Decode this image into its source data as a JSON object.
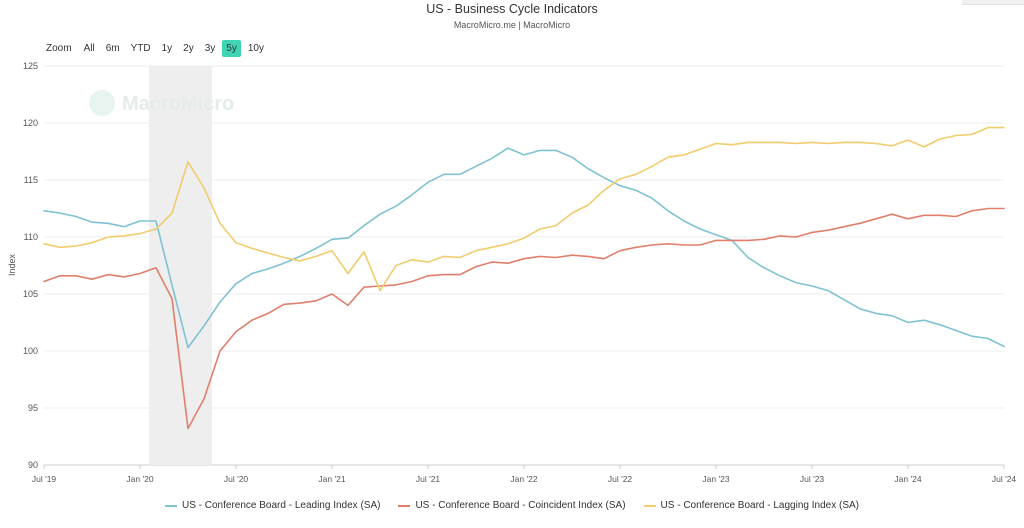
{
  "header": {
    "title": "US - Business Cycle Indicators",
    "subtitle": "MacroMicro.me | MacroMicro"
  },
  "range_selector": {
    "label": "Zoom",
    "buttons": [
      "All",
      "6m",
      "YTD",
      "1y",
      "2y",
      "3y",
      "5y",
      "10y"
    ],
    "active": "5y"
  },
  "watermark": "MacroMicro",
  "chart_data": {
    "type": "line",
    "title": "US - Business Cycle Indicators",
    "subtitle": "MacroMicro.me | MacroMicro",
    "ylabel": "Index",
    "xlabel": "",
    "ylim": [
      90,
      125
    ],
    "yticks": [
      90,
      95,
      100,
      105,
      110,
      115,
      120,
      125
    ],
    "xlim": [
      "2019-07",
      "2024-07"
    ],
    "xticks": [
      {
        "date": "2019-07",
        "label": "Jul '19"
      },
      {
        "date": "2020-01",
        "label": "Jan '20"
      },
      {
        "date": "2020-07",
        "label": "Jul '20"
      },
      {
        "date": "2021-01",
        "label": "Jan '21"
      },
      {
        "date": "2021-07",
        "label": "Jul '21"
      },
      {
        "date": "2022-01",
        "label": "Jan '22"
      },
      {
        "date": "2022-07",
        "label": "Jul '22"
      },
      {
        "date": "2023-01",
        "label": "Jan '23"
      },
      {
        "date": "2023-07",
        "label": "Jul '23"
      },
      {
        "date": "2024-01",
        "label": "Jan '24"
      },
      {
        "date": "2024-07",
        "label": "Jul '24"
      }
    ],
    "grid": true,
    "legend": "bottom",
    "recession_band": {
      "start": "2020-02",
      "end": "2020-05"
    },
    "x": [
      "2019-07",
      "2019-08",
      "2019-09",
      "2019-10",
      "2019-11",
      "2019-12",
      "2020-01",
      "2020-02",
      "2020-03",
      "2020-04",
      "2020-05",
      "2020-06",
      "2020-07",
      "2020-08",
      "2020-09",
      "2020-10",
      "2020-11",
      "2020-12",
      "2021-01",
      "2021-02",
      "2021-03",
      "2021-04",
      "2021-05",
      "2021-06",
      "2021-07",
      "2021-08",
      "2021-09",
      "2021-10",
      "2021-11",
      "2021-12",
      "2022-01",
      "2022-02",
      "2022-03",
      "2022-04",
      "2022-05",
      "2022-06",
      "2022-07",
      "2022-08",
      "2022-09",
      "2022-10",
      "2022-11",
      "2022-12",
      "2023-01",
      "2023-02",
      "2023-03",
      "2023-04",
      "2023-05",
      "2023-06",
      "2023-07",
      "2023-08",
      "2023-09",
      "2023-10",
      "2023-11",
      "2023-12",
      "2024-01",
      "2024-02",
      "2024-03",
      "2024-04",
      "2024-05",
      "2024-06",
      "2024-07"
    ],
    "series": [
      {
        "name": "US - Conference Board - Leading Index (SA)",
        "color": "#7ec2d3",
        "values": [
          112.3,
          112.1,
          111.8,
          111.3,
          111.2,
          110.9,
          111.4,
          111.4,
          105.8,
          100.3,
          102.2,
          104.3,
          105.9,
          106.8,
          107.2,
          107.7,
          108.3,
          109.0,
          109.8,
          109.9,
          111.0,
          112.0,
          112.7,
          113.7,
          114.8,
          115.5,
          115.5,
          116.2,
          116.9,
          117.8,
          117.2,
          117.6,
          117.6,
          117.0,
          116.0,
          115.2,
          114.5,
          114.1,
          113.4,
          112.3,
          111.4,
          110.7,
          110.2,
          109.7,
          108.2,
          107.3,
          106.6,
          106.0,
          105.7,
          105.3,
          104.5,
          103.7,
          103.3,
          103.1,
          102.5,
          102.7,
          102.3,
          101.8,
          101.3,
          101.1,
          100.4
        ]
      },
      {
        "name": "US - Conference Board - Coincident Index (SA)",
        "color": "#e07f6c",
        "values": [
          106.1,
          106.6,
          106.6,
          106.3,
          106.7,
          106.5,
          106.8,
          107.3,
          104.6,
          93.2,
          95.8,
          100.0,
          101.7,
          102.7,
          103.3,
          104.1,
          104.2,
          104.4,
          105.0,
          104.0,
          105.6,
          105.7,
          105.8,
          106.1,
          106.6,
          106.7,
          106.7,
          107.4,
          107.8,
          107.7,
          108.1,
          108.3,
          108.2,
          108.4,
          108.3,
          108.1,
          108.8,
          109.1,
          109.3,
          109.4,
          109.3,
          109.3,
          109.7,
          109.7,
          109.7,
          109.8,
          110.1,
          110.0,
          110.4,
          110.6,
          110.9,
          111.2,
          111.6,
          112.0,
          111.6,
          111.9,
          111.9,
          111.8,
          112.3,
          112.5,
          112.5
        ]
      },
      {
        "name": "US - Conference Board - Lagging Index (SA)",
        "color": "#f1cc6d",
        "values": [
          109.4,
          109.1,
          109.2,
          109.5,
          110.0,
          110.1,
          110.3,
          110.7,
          112.1,
          116.6,
          114.3,
          111.2,
          109.5,
          109.0,
          108.6,
          108.2,
          107.9,
          108.3,
          108.8,
          106.8,
          108.7,
          105.3,
          107.5,
          108.0,
          107.8,
          108.3,
          108.2,
          108.8,
          109.1,
          109.4,
          109.9,
          110.7,
          111.0,
          112.1,
          112.8,
          114.1,
          115.1,
          115.5,
          116.2,
          117.0,
          117.2,
          117.7,
          118.2,
          118.1,
          118.3,
          118.3,
          118.3,
          118.2,
          118.3,
          118.2,
          118.3,
          118.3,
          118.2,
          118.0,
          118.5,
          117.9,
          118.6,
          118.9,
          119.0,
          119.6,
          119.6
        ]
      }
    ]
  }
}
